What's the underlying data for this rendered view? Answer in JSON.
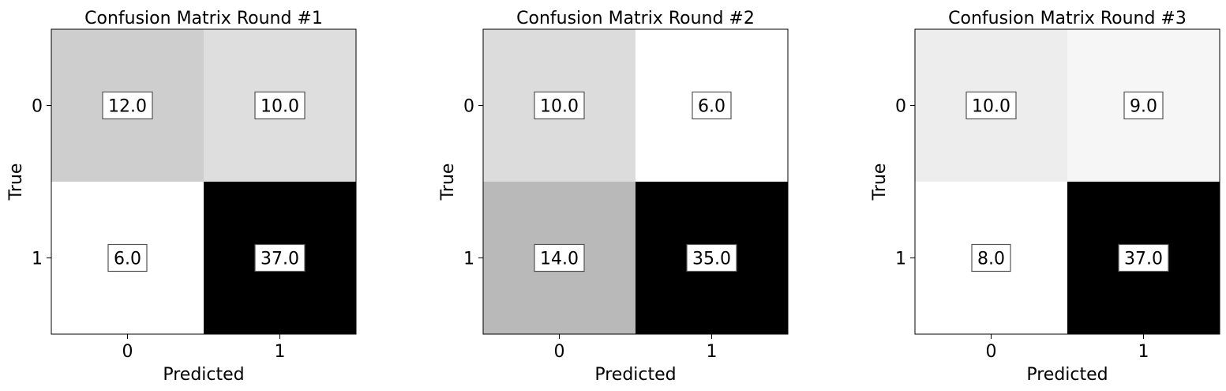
{
  "chart_data": [
    {
      "type": "heatmap",
      "title": "Confusion Matrix Round #1",
      "xlabel": "Predicted",
      "ylabel": "True",
      "x_categories": [
        "0",
        "1"
      ],
      "y_categories": [
        "0",
        "1"
      ],
      "values": [
        [
          12.0,
          10.0
        ],
        [
          6.0,
          37.0
        ]
      ],
      "value_labels": [
        [
          "12.0",
          "10.0"
        ],
        [
          "6.0",
          "37.0"
        ]
      ],
      "colormap": "grayscale (white = low, black = high)",
      "grid": false
    },
    {
      "type": "heatmap",
      "title": "Confusion Matrix Round #2",
      "xlabel": "Predicted",
      "ylabel": "True",
      "x_categories": [
        "0",
        "1"
      ],
      "y_categories": [
        "0",
        "1"
      ],
      "values": [
        [
          10.0,
          6.0
        ],
        [
          14.0,
          35.0
        ]
      ],
      "value_labels": [
        [
          "10.0",
          "6.0"
        ],
        [
          "14.0",
          "35.0"
        ]
      ],
      "colormap": "grayscale (white = low, black = high)",
      "grid": false
    },
    {
      "type": "heatmap",
      "title": "Confusion Matrix Round #3",
      "xlabel": "Predicted",
      "ylabel": "True",
      "x_categories": [
        "0",
        "1"
      ],
      "y_categories": [
        "0",
        "1"
      ],
      "values": [
        [
          10.0,
          9.0
        ],
        [
          8.0,
          37.0
        ]
      ],
      "value_labels": [
        [
          "10.0",
          "9.0"
        ],
        [
          "8.0",
          "37.0"
        ]
      ],
      "colormap": "grayscale (white = low, black = high)",
      "grid": false
    }
  ]
}
